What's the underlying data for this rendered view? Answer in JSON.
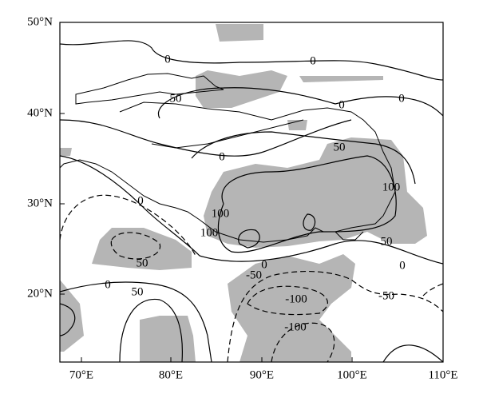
{
  "map": {
    "x_labels": [
      "70°E",
      "80°E",
      "90°E",
      "100°E",
      "110°E"
    ],
    "y_labels": [
      "50°N",
      "40°N",
      "30°N",
      "20°N"
    ],
    "contour_labels": [
      "0",
      "0",
      "50",
      "0",
      "0",
      "0",
      "50",
      "0",
      "100",
      "100",
      "100",
      "50",
      "0",
      "50",
      "-50",
      "0",
      "50",
      "0",
      "-100",
      "-50",
      "-100"
    ]
  }
}
